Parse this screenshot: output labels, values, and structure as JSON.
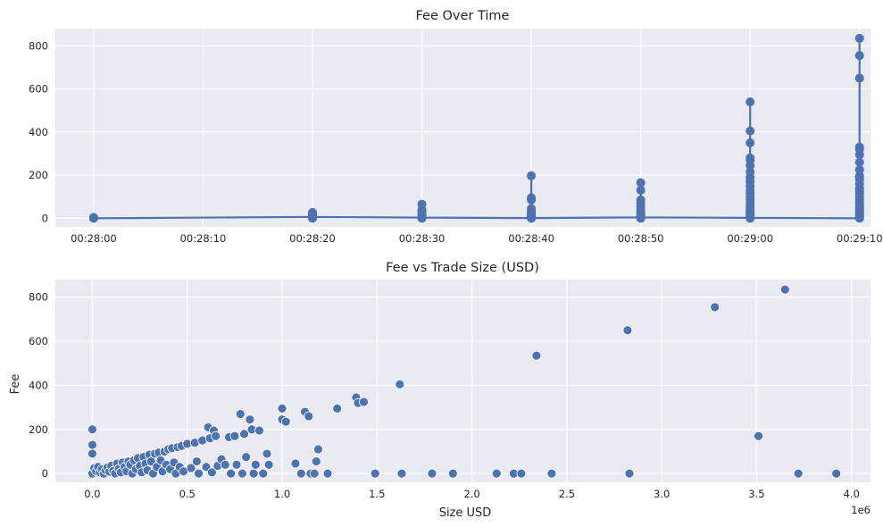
{
  "chart_data": [
    {
      "type": "line",
      "title": "Fee Over Time",
      "xlabel": "",
      "ylabel": "",
      "x_ticks": [
        "00:28:00",
        "00:28:10",
        "00:28:20",
        "00:28:30",
        "00:28:40",
        "00:28:50",
        "00:29:00",
        "00:29:10"
      ],
      "y_ticks": [
        "0",
        "200",
        "400",
        "600",
        "800"
      ],
      "ylim": [
        -40,
        880
      ],
      "xlim_seconds_from_00_28_00": [
        -3.5,
        71
      ],
      "grid": true,
      "color": "#4c72b0",
      "line": [
        {
          "t": "00:28:00",
          "fee": 0
        },
        {
          "t": "00:28:20",
          "fee": 6
        },
        {
          "t": "00:28:30",
          "fee": 3
        },
        {
          "t": "00:28:40",
          "fee": 1
        },
        {
          "t": "00:28:50",
          "fee": 4
        },
        {
          "t": "00:29:00",
          "fee": 2
        },
        {
          "t": "00:29:10",
          "fee": 0
        }
      ],
      "points": [
        {
          "t": "00:28:00",
          "fees": [
            0,
            2,
            4
          ]
        },
        {
          "t": "00:28:20",
          "fees": [
            0,
            3,
            6,
            10,
            15,
            22,
            27
          ]
        },
        {
          "t": "00:28:30",
          "fees": [
            0,
            4,
            8,
            13,
            19,
            25,
            32,
            40,
            65
          ]
        },
        {
          "t": "00:28:40",
          "fees": [
            0,
            3,
            7,
            12,
            17,
            23,
            30,
            38,
            45,
            85,
            95,
            197
          ]
        },
        {
          "t": "00:28:50",
          "fees": [
            0,
            4,
            8,
            12,
            18,
            25,
            33,
            42,
            55,
            70,
            85,
            130,
            165
          ]
        },
        {
          "t": "00:29:00",
          "fees": [
            0,
            5,
            10,
            15,
            20,
            26,
            32,
            40,
            48,
            57,
            66,
            76,
            88,
            100,
            115,
            130,
            150,
            170,
            190,
            215,
            245,
            270,
            280,
            350,
            405,
            540
          ]
        },
        {
          "t": "00:29:10",
          "fees": [
            0,
            4,
            8,
            13,
            18,
            24,
            30,
            38,
            46,
            55,
            65,
            75,
            88,
            100,
            115,
            130,
            140,
            160,
            180,
            195,
            225,
            260,
            295,
            320,
            330,
            650,
            755,
            835
          ]
        }
      ]
    },
    {
      "type": "scatter",
      "title": "Fee vs Trade Size (USD)",
      "xlabel": "Size USD",
      "ylabel": "Fee",
      "x_offset_label": "1e6",
      "x_ticks": [
        "0.0",
        "0.5",
        "1.0",
        "1.5",
        "2.0",
        "2.5",
        "3.0",
        "3.5",
        "4.0"
      ],
      "y_ticks": [
        "0",
        "200",
        "400",
        "600",
        "800"
      ],
      "xlim": [
        -0.195,
        4.1
      ],
      "ylim": [
        -40,
        880
      ],
      "grid": true,
      "color": "#4c72b0",
      "points": [
        [
          0.0,
          200
        ],
        [
          0.0,
          130
        ],
        [
          0.0,
          90
        ],
        [
          0.0,
          0
        ],
        [
          0.01,
          25
        ],
        [
          0.02,
          10
        ],
        [
          0.03,
          30
        ],
        [
          0.04,
          5
        ],
        [
          0.05,
          20
        ],
        [
          0.06,
          0
        ],
        [
          0.07,
          15
        ],
        [
          0.08,
          28
        ],
        [
          0.09,
          8
        ],
        [
          0.1,
          35
        ],
        [
          0.11,
          12
        ],
        [
          0.12,
          0
        ],
        [
          0.13,
          45
        ],
        [
          0.14,
          22
        ],
        [
          0.15,
          5
        ],
        [
          0.16,
          50
        ],
        [
          0.17,
          30
        ],
        [
          0.18,
          10
        ],
        [
          0.19,
          55
        ],
        [
          0.2,
          40
        ],
        [
          0.21,
          0
        ],
        [
          0.22,
          60
        ],
        [
          0.23,
          20
        ],
        [
          0.24,
          70
        ],
        [
          0.25,
          35
        ],
        [
          0.26,
          5
        ],
        [
          0.27,
          75
        ],
        [
          0.28,
          45
        ],
        [
          0.29,
          15
        ],
        [
          0.3,
          85
        ],
        [
          0.31,
          55
        ],
        [
          0.32,
          0
        ],
        [
          0.33,
          90
        ],
        [
          0.34,
          30
        ],
        [
          0.35,
          95
        ],
        [
          0.36,
          60
        ],
        [
          0.37,
          10
        ],
        [
          0.38,
          100
        ],
        [
          0.39,
          40
        ],
        [
          0.4,
          110
        ],
        [
          0.41,
          20
        ],
        [
          0.42,
          115
        ],
        [
          0.43,
          50
        ],
        [
          0.44,
          0
        ],
        [
          0.45,
          120
        ],
        [
          0.46,
          30
        ],
        [
          0.47,
          125
        ],
        [
          0.48,
          10
        ],
        [
          0.5,
          135
        ],
        [
          0.52,
          25
        ],
        [
          0.54,
          140
        ],
        [
          0.55,
          55
        ],
        [
          0.56,
          0
        ],
        [
          0.58,
          150
        ],
        [
          0.6,
          30
        ],
        [
          0.61,
          210
        ],
        [
          0.62,
          160
        ],
        [
          0.63,
          5
        ],
        [
          0.64,
          195
        ],
        [
          0.65,
          170
        ],
        [
          0.66,
          35
        ],
        [
          0.68,
          65
        ],
        [
          0.7,
          40
        ],
        [
          0.72,
          165
        ],
        [
          0.73,
          0
        ],
        [
          0.75,
          170
        ],
        [
          0.76,
          40
        ],
        [
          0.78,
          270
        ],
        [
          0.79,
          0
        ],
        [
          0.8,
          180
        ],
        [
          0.81,
          75
        ],
        [
          0.83,
          245
        ],
        [
          0.84,
          200
        ],
        [
          0.85,
          0
        ],
        [
          0.86,
          40
        ],
        [
          0.88,
          195
        ],
        [
          0.9,
          0
        ],
        [
          0.92,
          90
        ],
        [
          0.93,
          40
        ],
        [
          1.0,
          295
        ],
        [
          1.0,
          245
        ],
        [
          1.02,
          235
        ],
        [
          1.07,
          45
        ],
        [
          1.1,
          0
        ],
        [
          1.12,
          280
        ],
        [
          1.14,
          260
        ],
        [
          1.15,
          0
        ],
        [
          1.17,
          0
        ],
        [
          1.18,
          55
        ],
        [
          1.19,
          110
        ],
        [
          1.24,
          0
        ],
        [
          1.29,
          295
        ],
        [
          1.39,
          345
        ],
        [
          1.4,
          320
        ],
        [
          1.43,
          325
        ],
        [
          1.49,
          0
        ],
        [
          1.62,
          405
        ],
        [
          1.63,
          0
        ],
        [
          1.79,
          0
        ],
        [
          1.9,
          0
        ],
        [
          2.13,
          0
        ],
        [
          2.22,
          0
        ],
        [
          2.26,
          0
        ],
        [
          2.34,
          535
        ],
        [
          2.42,
          0
        ],
        [
          2.82,
          650
        ],
        [
          2.83,
          0
        ],
        [
          3.28,
          755
        ],
        [
          3.51,
          170
        ],
        [
          3.65,
          835
        ],
        [
          3.72,
          0
        ],
        [
          3.92,
          0
        ]
      ]
    }
  ]
}
